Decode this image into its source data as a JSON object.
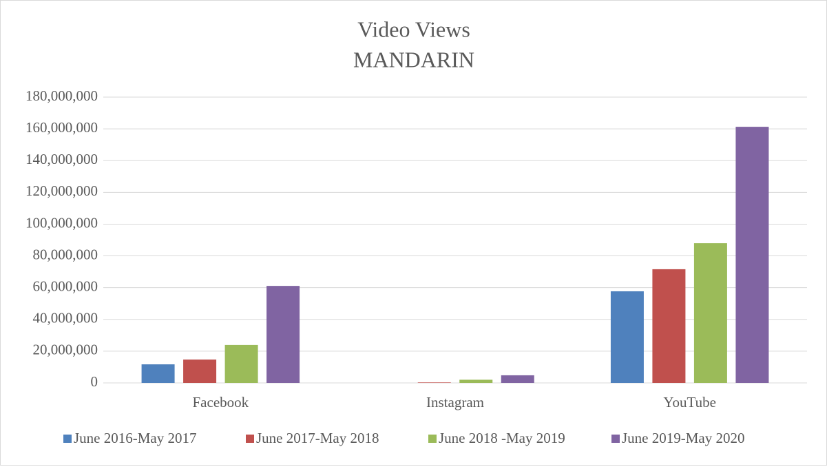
{
  "chart_data": {
    "type": "bar",
    "title": "Video Views",
    "subtitle": "MANDARIN",
    "categories": [
      "Facebook",
      "Instagram",
      "YouTube"
    ],
    "series": [
      {
        "name": "June 2016-May 2017",
        "color": "#4f81bd",
        "values": [
          11700000,
          0,
          57700000
        ]
      },
      {
        "name": "June 2017-May 2018",
        "color": "#c0504d",
        "values": [
          14700000,
          300000,
          71600000
        ]
      },
      {
        "name": "June 2018 -May 2019",
        "color": "#9bbb59",
        "values": [
          23900000,
          2000000,
          88000000
        ]
      },
      {
        "name": "June 2019-May 2020",
        "color": "#8064a2",
        "values": [
          61100000,
          4800000,
          161300000
        ]
      }
    ],
    "ylim": [
      0,
      180000000
    ],
    "yticks": [
      0,
      {
        "value": 20000000,
        "label": "20,000,000"
      },
      {
        "value": 40000000,
        "label": "40,000,000"
      },
      {
        "value": 60000000,
        "label": "60,000,000"
      },
      {
        "value": 80000000,
        "label": "80,000,000"
      },
      {
        "value": 100000000,
        "label": "100,000,000"
      },
      {
        "value": 120000000,
        "label": "120,000,000"
      },
      {
        "value": 140000000,
        "label": "140,000,000"
      },
      {
        "value": 160000000,
        "label": "160,000,000"
      },
      {
        "value": 180000000,
        "label": "180,000,000"
      }
    ],
    "grid": true,
    "legend": "bottom"
  }
}
